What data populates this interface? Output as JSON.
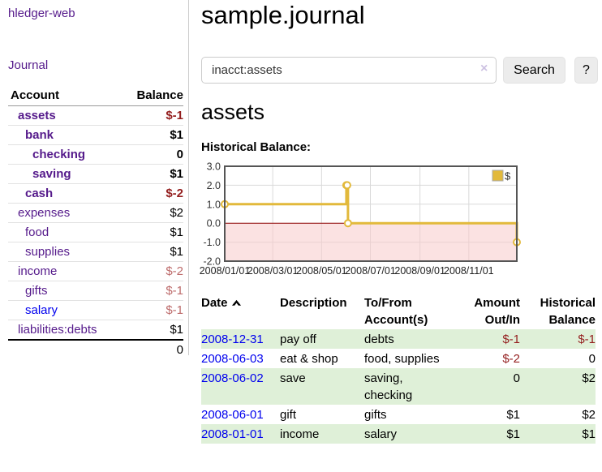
{
  "app": {
    "title": "hledger-web"
  },
  "sidebar": {
    "journal_link": "Journal",
    "headers": {
      "account": "Account",
      "balance": "Balance"
    },
    "accounts": [
      {
        "name": "assets",
        "level": 0,
        "bold": true,
        "balance": "$-1",
        "balance_style": "neg-strong",
        "name_style": "purple"
      },
      {
        "name": "bank",
        "level": 1,
        "bold": true,
        "balance": "$1",
        "balance_style": "",
        "name_style": "purple"
      },
      {
        "name": "checking",
        "level": 2,
        "bold": true,
        "balance": "0",
        "balance_style": "",
        "name_style": "purple"
      },
      {
        "name": "saving",
        "level": 2,
        "bold": true,
        "balance": "$1",
        "balance_style": "",
        "name_style": "purple"
      },
      {
        "name": "cash",
        "level": 1,
        "bold": true,
        "balance": "$-2",
        "balance_style": "neg-strong",
        "name_style": "purple"
      },
      {
        "name": "expenses",
        "level": 0,
        "bold": false,
        "balance": "$2",
        "balance_style": "",
        "name_style": "purple"
      },
      {
        "name": "food",
        "level": 1,
        "bold": false,
        "balance": "$1",
        "balance_style": "",
        "name_style": "purple"
      },
      {
        "name": "supplies",
        "level": 1,
        "bold": false,
        "balance": "$1",
        "balance_style": "",
        "name_style": "purple"
      },
      {
        "name": "income",
        "level": 0,
        "bold": false,
        "balance": "$-2",
        "balance_style": "neg-faint",
        "name_style": "purple"
      },
      {
        "name": "gifts",
        "level": 1,
        "bold": false,
        "balance": "$-1",
        "balance_style": "neg-faint",
        "name_style": "purple"
      },
      {
        "name": "salary",
        "level": 1,
        "bold": false,
        "balance": "$-1",
        "balance_style": "neg-faint",
        "name_style": "blue"
      },
      {
        "name": "liabilities:debts",
        "level": 0,
        "bold": false,
        "balance": "$1",
        "balance_style": "",
        "name_style": "purple"
      }
    ],
    "total": "0"
  },
  "main": {
    "title": "sample.journal",
    "search": {
      "value": "inacct:assets",
      "clear_icon": "×",
      "button_label": "Search",
      "help_label": "?"
    },
    "account_heading": "assets",
    "chart_label": "Historical Balance:"
  },
  "chart_data": {
    "type": "line",
    "style": "step-after",
    "title": "Historical Balance",
    "legend": [
      "$"
    ],
    "legend_position": "top-right",
    "grid": true,
    "xlim": [
      "2008-01-01",
      "2008-12-31"
    ],
    "ylim": [
      -2.0,
      3.0
    ],
    "y_ticks": [
      3.0,
      2.0,
      1.0,
      0.0,
      -1.0,
      -2.0
    ],
    "x_ticks": [
      "2008/01/01",
      "2008/03/01",
      "2008/05/01",
      "2008/07/01",
      "2008/09/01",
      "2008/11/01"
    ],
    "series": [
      {
        "name": "$",
        "points": [
          {
            "date": "2008-01-01",
            "value": 1
          },
          {
            "date": "2008-06-01",
            "value": 2
          },
          {
            "date": "2008-06-02",
            "value": 2
          },
          {
            "date": "2008-06-03",
            "value": 0
          },
          {
            "date": "2008-12-31",
            "value": -1
          }
        ]
      }
    ],
    "negative_region_below": 0
  },
  "register": {
    "headers": {
      "date": "Date",
      "description": "Description",
      "accounts": "To/From Account(s)",
      "amount": "Amount Out/In",
      "balance": "Historical Balance"
    },
    "rows": [
      {
        "date": "2008-12-31",
        "description": "pay off",
        "accounts": "debts",
        "amount": "$-1",
        "balance": "$-1",
        "amount_neg": true,
        "balance_neg": true
      },
      {
        "date": "2008-06-03",
        "description": "eat & shop",
        "accounts": "food, supplies",
        "amount": "$-2",
        "balance": "0",
        "amount_neg": true,
        "balance_neg": false
      },
      {
        "date": "2008-06-02",
        "description": "save",
        "accounts": "saving, checking",
        "amount": "0",
        "balance": "$2",
        "amount_neg": false,
        "balance_neg": false
      },
      {
        "date": "2008-06-01",
        "description": "gift",
        "accounts": "gifts",
        "amount": "$1",
        "balance": "$2",
        "amount_neg": false,
        "balance_neg": false
      },
      {
        "date": "2008-01-01",
        "description": "income",
        "accounts": "salary",
        "amount": "$1",
        "balance": "$1",
        "amount_neg": false,
        "balance_neg": false
      }
    ]
  },
  "colors": {
    "link_purple": "#551a8b",
    "link_blue": "#0000ee",
    "negative_strong": "#941f1f",
    "negative_faint": "#bd6b6b",
    "row_green": "#dff0d8",
    "chart_line_gold": "#e2b93b",
    "chart_negative_pink": "#f7caca",
    "chart_zero_line": "#8b0000",
    "chart_border": "#555555",
    "grid_gray": "#d9d9d9"
  }
}
